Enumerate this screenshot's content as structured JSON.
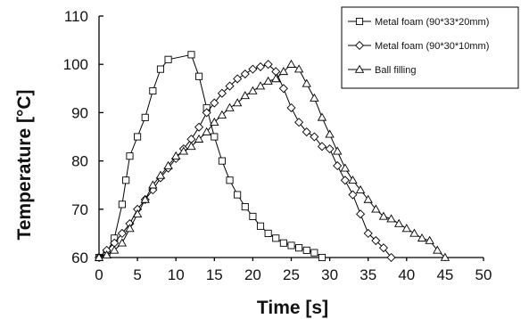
{
  "chart_data": {
    "type": "line",
    "xlabel": "Time [s]",
    "ylabel": "Temperature [°C]",
    "xlim": [
      0,
      50
    ],
    "ylim": [
      60,
      110
    ],
    "xticks": [
      0,
      5,
      10,
      15,
      20,
      25,
      30,
      35,
      40,
      45,
      50
    ],
    "yticks": [
      60,
      70,
      80,
      90,
      100,
      110
    ],
    "grid": false,
    "legend_position": "top-right",
    "series": [
      {
        "name": "Metal foam (90*33*20mm)",
        "marker": "square",
        "x": [
          0,
          1,
          2,
          3,
          3.5,
          4,
          5,
          6,
          7,
          8,
          9,
          12,
          13,
          14,
          15,
          16,
          17,
          18,
          19,
          20,
          21,
          22,
          23,
          24,
          25,
          26,
          27,
          28,
          29
        ],
        "y": [
          60,
          61,
          64,
          71,
          76,
          81,
          85,
          89,
          94.5,
          99,
          101,
          102,
          97.5,
          91,
          85,
          80,
          76,
          73,
          70.5,
          68.5,
          66.5,
          65,
          64,
          63,
          62.5,
          62,
          61.5,
          61,
          60
        ]
      },
      {
        "name": "Metal foam (90*30*10mm)",
        "marker": "diamond",
        "x": [
          0,
          1,
          2,
          3,
          4,
          5,
          6,
          7,
          8,
          9,
          10,
          11,
          12,
          13,
          14,
          15,
          16,
          17,
          18,
          19,
          20,
          21,
          22,
          23,
          24,
          25,
          26,
          27,
          28,
          29,
          30,
          31,
          32,
          33,
          34,
          35,
          36,
          37,
          38
        ],
        "y": [
          60,
          61.5,
          63,
          65,
          67,
          70,
          72,
          74,
          76.5,
          78.5,
          80.5,
          82.5,
          84.5,
          87,
          90,
          92,
          94,
          95.5,
          97,
          98,
          99,
          99.5,
          100,
          98.5,
          95,
          91,
          88,
          86,
          85,
          83,
          82.5,
          79,
          76,
          73,
          69,
          65,
          63.5,
          62,
          60
        ]
      },
      {
        "name": "Ball filling",
        "marker": "triangle",
        "x": [
          0,
          1,
          2,
          3,
          4,
          5,
          6,
          7,
          8,
          9,
          10,
          11,
          12,
          13,
          14,
          15,
          16,
          17,
          18,
          19,
          20,
          21,
          22,
          23,
          24,
          25,
          26,
          27,
          28,
          29,
          30,
          31,
          32,
          33,
          34,
          35,
          36,
          37,
          38,
          39,
          40,
          41,
          42,
          43,
          44,
          45
        ],
        "y": [
          60,
          60.5,
          61.5,
          63,
          66,
          69,
          72,
          75,
          77,
          79,
          81,
          82,
          83,
          84.5,
          86,
          88,
          89.5,
          91,
          92,
          93.5,
          94.5,
          95.5,
          96.5,
          97,
          98.5,
          100,
          99,
          96,
          93,
          89,
          85.5,
          82,
          78.5,
          76,
          74,
          72,
          70,
          68.5,
          68,
          67,
          66,
          65,
          64,
          63.5,
          61.5,
          60
        ]
      }
    ]
  }
}
